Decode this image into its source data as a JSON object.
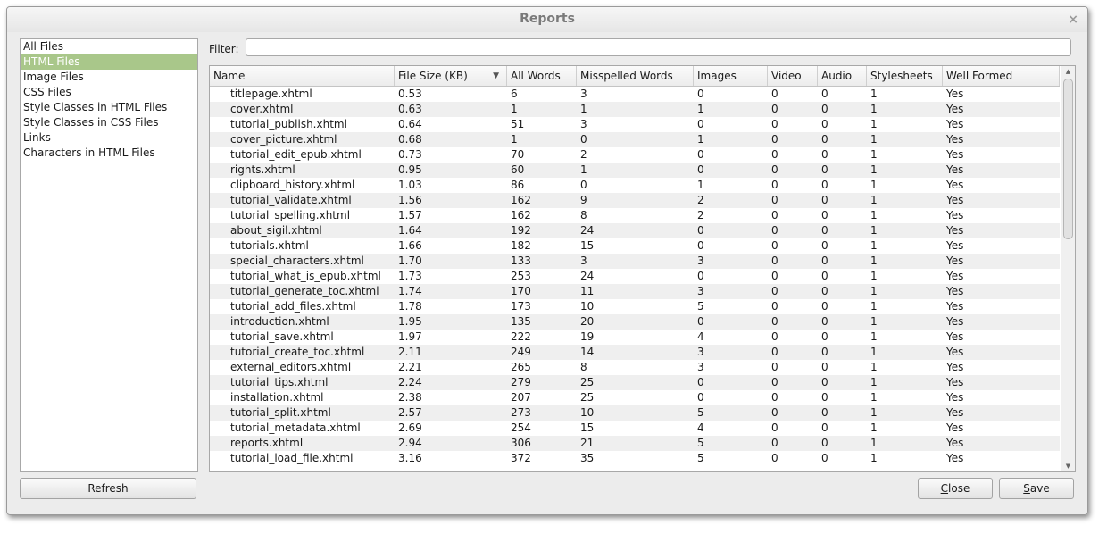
{
  "window": {
    "title": "Reports"
  },
  "icons": {
    "close": "×",
    "sort_desc": "▼",
    "scroll_up": "▲",
    "scroll_down": "▼"
  },
  "sidebar": {
    "items": [
      {
        "label": "All Files",
        "selected": false
      },
      {
        "label": "HTML Files",
        "selected": true
      },
      {
        "label": "Image Files",
        "selected": false
      },
      {
        "label": "CSS Files",
        "selected": false
      },
      {
        "label": "Style Classes in HTML Files",
        "selected": false
      },
      {
        "label": "Style Classes in CSS Files",
        "selected": false
      },
      {
        "label": "Links",
        "selected": false
      },
      {
        "label": "Characters in HTML Files",
        "selected": false
      }
    ]
  },
  "filter": {
    "label": "Filter:",
    "value": ""
  },
  "table": {
    "columns": [
      "Name",
      "File Size (KB)",
      "All Words",
      "Misspelled Words",
      "Images",
      "Video",
      "Audio",
      "Stylesheets",
      "Well Formed"
    ],
    "sorted_column": "File Size (KB)",
    "rows": [
      [
        "titlepage.xhtml",
        "0.53",
        "6",
        "3",
        "0",
        "0",
        "0",
        "1",
        "Yes"
      ],
      [
        "cover.xhtml",
        "0.63",
        "1",
        "1",
        "1",
        "0",
        "0",
        "1",
        "Yes"
      ],
      [
        "tutorial_publish.xhtml",
        "0.64",
        "51",
        "3",
        "0",
        "0",
        "0",
        "1",
        "Yes"
      ],
      [
        "cover_picture.xhtml",
        "0.68",
        "1",
        "0",
        "1",
        "0",
        "0",
        "1",
        "Yes"
      ],
      [
        "tutorial_edit_epub.xhtml",
        "0.73",
        "70",
        "2",
        "0",
        "0",
        "0",
        "1",
        "Yes"
      ],
      [
        "rights.xhtml",
        "0.95",
        "60",
        "1",
        "0",
        "0",
        "0",
        "1",
        "Yes"
      ],
      [
        "clipboard_history.xhtml",
        "1.03",
        "86",
        "0",
        "1",
        "0",
        "0",
        "1",
        "Yes"
      ],
      [
        "tutorial_validate.xhtml",
        "1.56",
        "162",
        "9",
        "2",
        "0",
        "0",
        "1",
        "Yes"
      ],
      [
        "tutorial_spelling.xhtml",
        "1.57",
        "162",
        "8",
        "2",
        "0",
        "0",
        "1",
        "Yes"
      ],
      [
        "about_sigil.xhtml",
        "1.64",
        "192",
        "24",
        "0",
        "0",
        "0",
        "1",
        "Yes"
      ],
      [
        "tutorials.xhtml",
        "1.66",
        "182",
        "15",
        "0",
        "0",
        "0",
        "1",
        "Yes"
      ],
      [
        "special_characters.xhtml",
        "1.70",
        "133",
        "3",
        "3",
        "0",
        "0",
        "1",
        "Yes"
      ],
      [
        "tutorial_what_is_epub.xhtml",
        "1.73",
        "253",
        "24",
        "0",
        "0",
        "0",
        "1",
        "Yes"
      ],
      [
        "tutorial_generate_toc.xhtml",
        "1.74",
        "170",
        "11",
        "3",
        "0",
        "0",
        "1",
        "Yes"
      ],
      [
        "tutorial_add_files.xhtml",
        "1.78",
        "173",
        "10",
        "5",
        "0",
        "0",
        "1",
        "Yes"
      ],
      [
        "introduction.xhtml",
        "1.95",
        "135",
        "20",
        "0",
        "0",
        "0",
        "1",
        "Yes"
      ],
      [
        "tutorial_save.xhtml",
        "1.97",
        "222",
        "19",
        "4",
        "0",
        "0",
        "1",
        "Yes"
      ],
      [
        "tutorial_create_toc.xhtml",
        "2.11",
        "249",
        "14",
        "3",
        "0",
        "0",
        "1",
        "Yes"
      ],
      [
        "external_editors.xhtml",
        "2.21",
        "265",
        "8",
        "3",
        "0",
        "0",
        "1",
        "Yes"
      ],
      [
        "tutorial_tips.xhtml",
        "2.24",
        "279",
        "25",
        "0",
        "0",
        "0",
        "1",
        "Yes"
      ],
      [
        "installation.xhtml",
        "2.38",
        "207",
        "25",
        "0",
        "0",
        "0",
        "1",
        "Yes"
      ],
      [
        "tutorial_split.xhtml",
        "2.57",
        "273",
        "10",
        "5",
        "0",
        "0",
        "1",
        "Yes"
      ],
      [
        "tutorial_metadata.xhtml",
        "2.69",
        "254",
        "15",
        "4",
        "0",
        "0",
        "1",
        "Yes"
      ],
      [
        "reports.xhtml",
        "2.94",
        "306",
        "21",
        "5",
        "0",
        "0",
        "1",
        "Yes"
      ],
      [
        "tutorial_load_file.xhtml",
        "3.16",
        "372",
        "35",
        "5",
        "0",
        "0",
        "1",
        "Yes"
      ]
    ]
  },
  "buttons": {
    "refresh": "Refresh",
    "close": "Close",
    "save": "Save"
  },
  "colors": {
    "selection": "#a9c78a",
    "row_alt": "#efefef",
    "title_text": "#7a7a7a"
  }
}
